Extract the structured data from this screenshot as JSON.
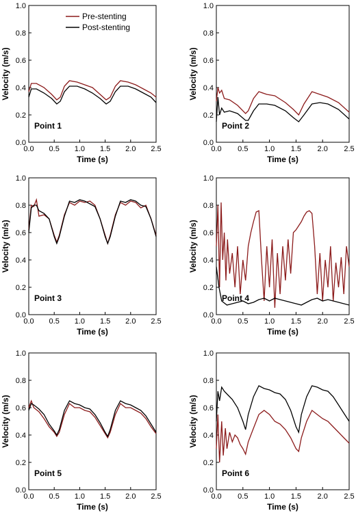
{
  "chart_data": [
    {
      "type": "line",
      "label": "Point 1",
      "xlabel": "Time (s)",
      "ylabel": "Velocity (m/s)",
      "xlim": [
        0,
        2.5
      ],
      "ylim": [
        0,
        1.0
      ],
      "xticks": [
        "0.0",
        "0.5",
        "1.0",
        "1.5",
        "2.0",
        "2.5"
      ],
      "yticks": [
        "0.0",
        "0.2",
        "0.4",
        "0.6",
        "0.8",
        "1.0"
      ],
      "legend": {
        "position": "top-right"
      },
      "series": [
        {
          "name": "Pre-stenting",
          "color": "#8b1a1a",
          "x": [
            0,
            0.05,
            0.15,
            0.3,
            0.45,
            0.55,
            0.62,
            0.7,
            0.8,
            0.95,
            1.1,
            1.25,
            1.4,
            1.52,
            1.6,
            1.7,
            1.8,
            1.95,
            2.1,
            2.25,
            2.4,
            2.5
          ],
          "y": [
            0.37,
            0.43,
            0.43,
            0.4,
            0.35,
            0.31,
            0.33,
            0.41,
            0.45,
            0.44,
            0.42,
            0.4,
            0.35,
            0.31,
            0.33,
            0.41,
            0.45,
            0.44,
            0.42,
            0.39,
            0.36,
            0.33
          ]
        },
        {
          "name": "Post-stenting",
          "color": "#000000",
          "x": [
            0,
            0.05,
            0.15,
            0.3,
            0.45,
            0.55,
            0.62,
            0.7,
            0.8,
            0.95,
            1.1,
            1.25,
            1.4,
            1.52,
            1.6,
            1.7,
            1.8,
            1.95,
            2.1,
            2.25,
            2.4,
            2.5
          ],
          "y": [
            0.33,
            0.39,
            0.39,
            0.36,
            0.32,
            0.28,
            0.3,
            0.37,
            0.41,
            0.41,
            0.39,
            0.36,
            0.32,
            0.28,
            0.3,
            0.37,
            0.41,
            0.41,
            0.39,
            0.36,
            0.33,
            0.29
          ]
        }
      ]
    },
    {
      "type": "line",
      "label": "Point 2",
      "xlabel": "Time (s)",
      "ylabel": "Velocity (m/s)",
      "xlim": [
        0,
        2.5
      ],
      "ylim": [
        0,
        1.0
      ],
      "xticks": [
        "0.0",
        "0.5",
        "1.0",
        "1.5",
        "2.0",
        "2.5"
      ],
      "yticks": [
        "0.0",
        "0.2",
        "0.4",
        "0.6",
        "0.8",
        "1.0"
      ],
      "series": [
        {
          "name": "Pre-stenting",
          "color": "#8b1a1a",
          "x": [
            0,
            0.03,
            0.06,
            0.1,
            0.15,
            0.25,
            0.4,
            0.55,
            0.6,
            0.7,
            0.8,
            0.95,
            1.1,
            1.3,
            1.45,
            1.55,
            1.65,
            1.8,
            1.95,
            2.1,
            2.3,
            2.5
          ],
          "y": [
            0.3,
            0.4,
            0.36,
            0.38,
            0.32,
            0.31,
            0.27,
            0.21,
            0.23,
            0.32,
            0.37,
            0.35,
            0.34,
            0.29,
            0.24,
            0.2,
            0.28,
            0.37,
            0.35,
            0.33,
            0.29,
            0.22
          ]
        },
        {
          "name": "Post-stenting",
          "color": "#000000",
          "x": [
            0,
            0.03,
            0.06,
            0.1,
            0.15,
            0.25,
            0.4,
            0.55,
            0.6,
            0.7,
            0.8,
            0.95,
            1.1,
            1.3,
            1.45,
            1.55,
            1.65,
            1.8,
            1.95,
            2.1,
            2.3,
            2.5
          ],
          "y": [
            0.15,
            0.33,
            0.2,
            0.25,
            0.22,
            0.23,
            0.21,
            0.16,
            0.16,
            0.23,
            0.28,
            0.28,
            0.27,
            0.23,
            0.18,
            0.15,
            0.2,
            0.28,
            0.29,
            0.28,
            0.24,
            0.17
          ]
        }
      ]
    },
    {
      "type": "line",
      "label": "Point 3",
      "xlabel": "Time (s)",
      "ylabel": "Velocity (m/s)",
      "xlim": [
        0,
        2.5
      ],
      "ylim": [
        0,
        1.0
      ],
      "xticks": [
        "0.0",
        "0.5",
        "1.0",
        "1.5",
        "2.0",
        "2.5"
      ],
      "yticks": [
        "0.0",
        "0.2",
        "0.4",
        "0.6",
        "0.8",
        "1.0"
      ],
      "series": [
        {
          "name": "Pre-stenting",
          "color": "#8b1a1a",
          "x": [
            0,
            0.05,
            0.1,
            0.15,
            0.2,
            0.3,
            0.4,
            0.5,
            0.55,
            0.6,
            0.7,
            0.8,
            0.9,
            1.0,
            1.1,
            1.2,
            1.3,
            1.4,
            1.5,
            1.55,
            1.6,
            1.7,
            1.8,
            1.9,
            2.0,
            2.1,
            2.2,
            2.3,
            2.4,
            2.5
          ],
          "y": [
            0.62,
            0.8,
            0.79,
            0.84,
            0.72,
            0.73,
            0.7,
            0.58,
            0.53,
            0.58,
            0.73,
            0.82,
            0.8,
            0.83,
            0.82,
            0.83,
            0.8,
            0.7,
            0.58,
            0.52,
            0.58,
            0.73,
            0.82,
            0.8,
            0.83,
            0.82,
            0.78,
            0.8,
            0.7,
            0.58
          ]
        },
        {
          "name": "Post-stenting",
          "color": "#000000",
          "x": [
            0,
            0.05,
            0.1,
            0.15,
            0.2,
            0.3,
            0.4,
            0.5,
            0.55,
            0.6,
            0.7,
            0.8,
            0.9,
            1.0,
            1.1,
            1.2,
            1.3,
            1.4,
            1.5,
            1.55,
            1.6,
            1.7,
            1.8,
            1.9,
            2.0,
            2.1,
            2.2,
            2.3,
            2.4,
            2.5
          ],
          "y": [
            0.6,
            0.78,
            0.8,
            0.8,
            0.76,
            0.74,
            0.7,
            0.57,
            0.52,
            0.57,
            0.72,
            0.83,
            0.82,
            0.84,
            0.83,
            0.81,
            0.79,
            0.7,
            0.57,
            0.52,
            0.57,
            0.72,
            0.83,
            0.82,
            0.84,
            0.83,
            0.8,
            0.79,
            0.7,
            0.57
          ]
        }
      ]
    },
    {
      "type": "line",
      "label": "Point 4",
      "xlabel": "Time (s)",
      "ylabel": "Velocity (m/s)",
      "xlim": [
        0,
        2.5
      ],
      "ylim": [
        0,
        1.0
      ],
      "xticks": [
        "0.0",
        "0.5",
        "1.0",
        "1.5",
        "2.0",
        "2.5"
      ],
      "yticks": [
        "0.0",
        "0.2",
        "0.4",
        "0.6",
        "0.8",
        "1.0"
      ],
      "series": [
        {
          "name": "Pre-stenting",
          "color": "#8b1a1a",
          "x": [
            0,
            0.03,
            0.06,
            0.09,
            0.12,
            0.15,
            0.18,
            0.21,
            0.25,
            0.3,
            0.35,
            0.4,
            0.45,
            0.5,
            0.55,
            0.6,
            0.65,
            0.7,
            0.75,
            0.8,
            0.85,
            0.9,
            0.95,
            1.0,
            1.05,
            1.1,
            1.15,
            1.2,
            1.25,
            1.3,
            1.35,
            1.4,
            1.45,
            1.5,
            1.55,
            1.6,
            1.65,
            1.7,
            1.75,
            1.8,
            1.85,
            1.9,
            1.95,
            2.0,
            2.05,
            2.1,
            2.15,
            2.2,
            2.25,
            2.3,
            2.35,
            2.4,
            2.45,
            2.5
          ],
          "y": [
            0.5,
            0.8,
            0.2,
            0.82,
            0.4,
            0.6,
            0.25,
            0.55,
            0.3,
            0.45,
            0.2,
            0.5,
            0.15,
            0.4,
            0.25,
            0.5,
            0.6,
            0.68,
            0.75,
            0.76,
            0.4,
            0.1,
            0.5,
            0.2,
            0.55,
            0.05,
            0.45,
            0.15,
            0.5,
            0.25,
            0.55,
            0.3,
            0.6,
            0.62,
            0.65,
            0.68,
            0.72,
            0.75,
            0.76,
            0.74,
            0.5,
            0.15,
            0.45,
            0.1,
            0.4,
            0.2,
            0.5,
            0.1,
            0.38,
            0.2,
            0.42,
            0.15,
            0.5,
            0.35
          ]
        },
        {
          "name": "Post-stenting",
          "color": "#000000",
          "x": [
            0,
            0.05,
            0.1,
            0.2,
            0.3,
            0.4,
            0.5,
            0.6,
            0.7,
            0.8,
            0.9,
            1.0,
            1.1,
            1.2,
            1.3,
            1.4,
            1.5,
            1.6,
            1.7,
            1.8,
            1.9,
            2.0,
            2.1,
            2.2,
            2.3,
            2.4,
            2.5
          ],
          "y": [
            0.35,
            0.2,
            0.1,
            0.07,
            0.08,
            0.09,
            0.1,
            0.08,
            0.09,
            0.11,
            0.12,
            0.1,
            0.12,
            0.11,
            0.1,
            0.09,
            0.08,
            0.07,
            0.09,
            0.11,
            0.12,
            0.1,
            0.11,
            0.1,
            0.09,
            0.08,
            0.07
          ]
        }
      ]
    },
    {
      "type": "line",
      "label": "Point 5",
      "xlabel": "Time (s)",
      "ylabel": "Velocity (m/s)",
      "xlim": [
        0,
        2.5
      ],
      "ylim": [
        0,
        1.0
      ],
      "xticks": [
        "0.0",
        "0.5",
        "1.0",
        "1.5",
        "2.0",
        "2.5"
      ],
      "yticks": [
        "0.0",
        "0.2",
        "0.4",
        "0.6",
        "0.8",
        "1.0"
      ],
      "series": [
        {
          "name": "Pre-stenting",
          "color": "#8b1a1a",
          "x": [
            0,
            0.05,
            0.1,
            0.2,
            0.3,
            0.4,
            0.5,
            0.55,
            0.6,
            0.7,
            0.8,
            0.9,
            1.0,
            1.1,
            1.2,
            1.3,
            1.4,
            1.5,
            1.55,
            1.6,
            1.7,
            1.8,
            1.9,
            2.0,
            2.1,
            2.2,
            2.3,
            2.4,
            2.5
          ],
          "y": [
            0.6,
            0.65,
            0.6,
            0.57,
            0.52,
            0.46,
            0.42,
            0.39,
            0.42,
            0.55,
            0.63,
            0.6,
            0.6,
            0.58,
            0.57,
            0.53,
            0.47,
            0.41,
            0.38,
            0.42,
            0.55,
            0.63,
            0.6,
            0.6,
            0.58,
            0.56,
            0.52,
            0.46,
            0.41
          ]
        },
        {
          "name": "Post-stenting",
          "color": "#000000",
          "x": [
            0,
            0.05,
            0.1,
            0.2,
            0.3,
            0.4,
            0.5,
            0.55,
            0.6,
            0.7,
            0.8,
            0.9,
            1.0,
            1.1,
            1.2,
            1.3,
            1.4,
            1.5,
            1.55,
            1.6,
            1.7,
            1.8,
            1.9,
            2.0,
            2.1,
            2.2,
            2.3,
            2.4,
            2.5
          ],
          "y": [
            0.58,
            0.63,
            0.62,
            0.59,
            0.55,
            0.48,
            0.43,
            0.4,
            0.44,
            0.58,
            0.65,
            0.63,
            0.62,
            0.6,
            0.59,
            0.55,
            0.49,
            0.42,
            0.39,
            0.44,
            0.58,
            0.65,
            0.63,
            0.62,
            0.6,
            0.58,
            0.54,
            0.48,
            0.42
          ]
        }
      ]
    },
    {
      "type": "line",
      "label": "Point 6",
      "xlabel": "Time (s)",
      "ylabel": "Velocity (m/s)",
      "xlim": [
        0,
        2.5
      ],
      "ylim": [
        0,
        1.0
      ],
      "xticks": [
        "0.0",
        "0.5",
        "1.0",
        "1.5",
        "2.0",
        "2.5"
      ],
      "yticks": [
        "0.0",
        "0.2",
        "0.4",
        "0.6",
        "0.8",
        "1.0"
      ],
      "series": [
        {
          "name": "Pre-stenting",
          "color": "#8b1a1a",
          "x": [
            0,
            0.03,
            0.06,
            0.1,
            0.13,
            0.17,
            0.2,
            0.25,
            0.3,
            0.35,
            0.4,
            0.45,
            0.5,
            0.55,
            0.6,
            0.7,
            0.8,
            0.9,
            1.0,
            1.1,
            1.2,
            1.3,
            1.4,
            1.5,
            1.55,
            1.6,
            1.7,
            1.8,
            1.9,
            2.0,
            2.1,
            2.2,
            2.3,
            2.4,
            2.5
          ],
          "y": [
            0.3,
            0.55,
            0.2,
            0.5,
            0.25,
            0.45,
            0.3,
            0.42,
            0.35,
            0.4,
            0.38,
            0.33,
            0.3,
            0.26,
            0.35,
            0.45,
            0.55,
            0.58,
            0.55,
            0.5,
            0.48,
            0.44,
            0.38,
            0.3,
            0.28,
            0.38,
            0.5,
            0.58,
            0.55,
            0.52,
            0.5,
            0.46,
            0.42,
            0.38,
            0.34
          ]
        },
        {
          "name": "Post-stenting",
          "color": "#000000",
          "x": [
            0,
            0.03,
            0.06,
            0.1,
            0.15,
            0.2,
            0.3,
            0.4,
            0.5,
            0.55,
            0.6,
            0.7,
            0.8,
            0.9,
            1.0,
            1.1,
            1.2,
            1.3,
            1.4,
            1.5,
            1.55,
            1.6,
            1.7,
            1.8,
            1.9,
            2.0,
            2.1,
            2.2,
            2.3,
            2.4,
            2.5
          ],
          "y": [
            0.5,
            0.72,
            0.65,
            0.75,
            0.72,
            0.7,
            0.66,
            0.6,
            0.5,
            0.44,
            0.55,
            0.68,
            0.76,
            0.74,
            0.73,
            0.71,
            0.7,
            0.66,
            0.58,
            0.46,
            0.42,
            0.55,
            0.68,
            0.76,
            0.75,
            0.73,
            0.72,
            0.68,
            0.62,
            0.56,
            0.5
          ]
        }
      ]
    }
  ]
}
